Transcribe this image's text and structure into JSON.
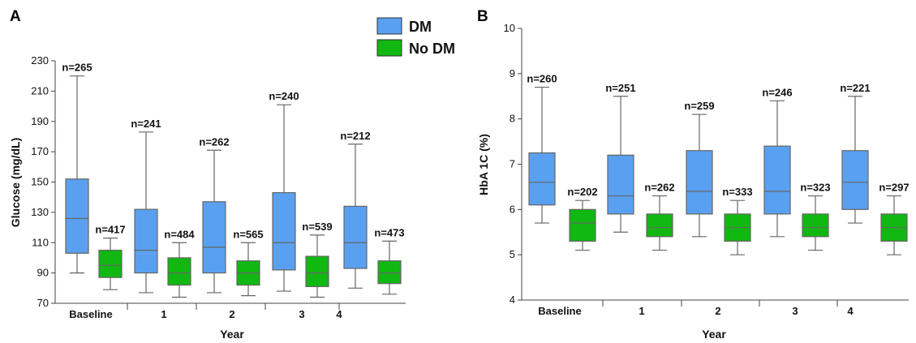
{
  "legend": [
    {
      "label": "DM",
      "color": "#5aa0f0"
    },
    {
      "label": "No DM",
      "color": "#11b811"
    }
  ],
  "colors": {
    "dm_fill": "#5aa0f0",
    "nodm_fill": "#11b811",
    "whisker": "#666666",
    "axis": "#444444"
  },
  "chart_data": [
    {
      "type": "box",
      "panel_label": "A",
      "xlabel": "Year",
      "ylabel": "Glucose (mg/dL)",
      "ylim": [
        70,
        230
      ],
      "yticks": [
        70,
        90,
        110,
        130,
        150,
        170,
        190,
        210,
        230
      ],
      "categories": [
        "Baseline",
        "1",
        "2",
        "3",
        "4"
      ],
      "series": [
        {
          "name": "DM",
          "boxes": [
            {
              "min": 90,
              "q1": 103,
              "median": 126,
              "q3": 152,
              "max": 220,
              "n": "n=265"
            },
            {
              "min": 77,
              "q1": 90,
              "median": 105,
              "q3": 132,
              "max": 183,
              "n": "n=241"
            },
            {
              "min": 77,
              "q1": 90,
              "median": 107,
              "q3": 137,
              "max": 171,
              "n": "n=262"
            },
            {
              "min": 78,
              "q1": 92,
              "median": 110,
              "q3": 143,
              "max": 201,
              "n": "n=240"
            },
            {
              "min": 80,
              "q1": 93,
              "median": 110,
              "q3": 134,
              "max": 175,
              "n": "n=212"
            }
          ]
        },
        {
          "name": "No DM",
          "boxes": [
            {
              "min": 79,
              "q1": 87,
              "median": 95,
              "q3": 105,
              "max": 113,
              "n": "n=417"
            },
            {
              "min": 74,
              "q1": 82,
              "median": 90,
              "q3": 100,
              "max": 110,
              "n": "n=484"
            },
            {
              "min": 75,
              "q1": 82,
              "median": 90,
              "q3": 98,
              "max": 110,
              "n": "n=565"
            },
            {
              "min": 74,
              "q1": 81,
              "median": 90,
              "q3": 101,
              "max": 115,
              "n": "n=539"
            },
            {
              "min": 76,
              "q1": 83,
              "median": 90,
              "q3": 98,
              "max": 111,
              "n": "n=473"
            }
          ]
        }
      ]
    },
    {
      "type": "box",
      "panel_label": "B",
      "xlabel": "Year",
      "ylabel": "HbA 1C (%)",
      "ylim": [
        4,
        10
      ],
      "yticks": [
        4,
        5,
        6,
        7,
        8,
        9,
        10
      ],
      "categories": [
        "Baseline",
        "1",
        "2",
        "3",
        "4"
      ],
      "series": [
        {
          "name": "DM",
          "boxes": [
            {
              "min": 5.7,
              "q1": 6.1,
              "median": 6.6,
              "q3": 7.25,
              "max": 8.7,
              "n": "n=260"
            },
            {
              "min": 5.5,
              "q1": 5.9,
              "median": 6.3,
              "q3": 7.2,
              "max": 8.5,
              "n": "n=251"
            },
            {
              "min": 5.4,
              "q1": 5.9,
              "median": 6.4,
              "q3": 7.3,
              "max": 8.1,
              "n": "n=259"
            },
            {
              "min": 5.4,
              "q1": 5.9,
              "median": 6.4,
              "q3": 7.4,
              "max": 8.4,
              "n": "n=246"
            },
            {
              "min": 5.7,
              "q1": 6.0,
              "median": 6.6,
              "q3": 7.3,
              "max": 8.5,
              "n": "n=221"
            }
          ]
        },
        {
          "name": "No DM",
          "boxes": [
            {
              "min": 5.1,
              "q1": 5.3,
              "median": 5.7,
              "q3": 6.0,
              "max": 6.2,
              "n": "n=202"
            },
            {
              "min": 5.1,
              "q1": 5.4,
              "median": 5.6,
              "q3": 5.9,
              "max": 6.3,
              "n": "n=262"
            },
            {
              "min": 5.0,
              "q1": 5.3,
              "median": 5.6,
              "q3": 5.9,
              "max": 6.2,
              "n": "n=333"
            },
            {
              "min": 5.1,
              "q1": 5.4,
              "median": 5.6,
              "q3": 5.9,
              "max": 6.3,
              "n": "n=323"
            },
            {
              "min": 5.0,
              "q1": 5.3,
              "median": 5.6,
              "q3": 5.9,
              "max": 6.3,
              "n": "n=297"
            }
          ]
        }
      ]
    }
  ]
}
